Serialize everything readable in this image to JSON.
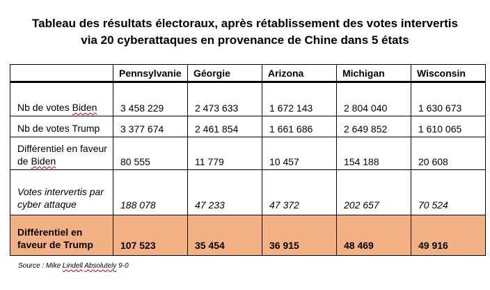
{
  "title": {
    "line1": "Tableau des résultats électoraux, après rétablissement des votes intervertis",
    "line2": "via 20 cyberattaques en provenance de Chine dans 5 états"
  },
  "table": {
    "headers": [
      "",
      "Pennsylvanie",
      "Géorgie",
      "Arizona",
      "Michigan",
      "Wisconsin"
    ],
    "rows": [
      {
        "label_parts": [
          "Nb de votes ",
          "Biden"
        ],
        "values": [
          "3 458 229",
          "2 473 633",
          "1 672 143",
          "2 804 040",
          "1 630 673"
        ]
      },
      {
        "label_parts": [
          "Nb de votes Trump"
        ],
        "values": [
          "3 377 674",
          "2 461 854",
          "1 661 686",
          "2 649 852",
          "1 610 065"
        ]
      },
      {
        "label_parts": [
          "Différentiel en faveur de ",
          "Biden"
        ],
        "values": [
          "80 555",
          "11 779",
          "10 457",
          "154 188",
          "20 608"
        ]
      },
      {
        "label_parts": [
          "Votes intervertis par cyber attaque"
        ],
        "values": [
          "188 078",
          "47 233",
          "47 372",
          "202 657",
          "70 524"
        ]
      },
      {
        "label_parts": [
          "Différentiel en faveur de Trump"
        ],
        "values": [
          "107 523",
          "35 454",
          "36 915",
          "48 469",
          "49 916"
        ]
      }
    ],
    "highlight_color": "#f4b183"
  },
  "source": {
    "prefix": "Source : Mike ",
    "name": "Lindell",
    "middle": " ",
    "word": "Absolutely",
    "suffix": " 9-0"
  }
}
